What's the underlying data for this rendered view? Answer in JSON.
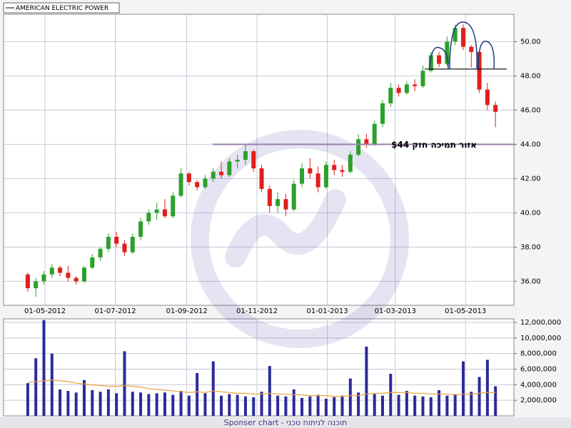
{
  "chart_data": [
    {
      "type": "candlestick",
      "series": [
        {
          "name": "AMERICAN ELECTRIC POWER",
          "up_color": "#2ca02c",
          "down_color": "#e0201b",
          "open": [
            36.4,
            35.6,
            36.0,
            36.4,
            36.8,
            36.5,
            36.2,
            36.0,
            36.8,
            37.4,
            37.9,
            38.6,
            38.2,
            37.7,
            38.6,
            39.5,
            40.0,
            40.2,
            39.8,
            41.0,
            42.3,
            41.8,
            41.5,
            42.0,
            42.4,
            42.2,
            43.0,
            43.1,
            43.6,
            42.6,
            41.4,
            40.4,
            40.8,
            40.2,
            41.7,
            42.6,
            42.3,
            41.5,
            42.8,
            42.5,
            42.4,
            43.4,
            44.3,
            44.0,
            45.2,
            46.4,
            47.3,
            47.0,
            47.5,
            47.4,
            48.3,
            49.2,
            48.7,
            50.0,
            50.8,
            49.7,
            49.4,
            47.2,
            46.3
          ],
          "high": [
            36.5,
            36.2,
            36.6,
            37.0,
            36.9,
            36.9,
            36.3,
            36.9,
            37.6,
            38.0,
            38.8,
            38.9,
            38.4,
            38.8,
            39.7,
            40.2,
            40.6,
            40.8,
            41.2,
            42.6,
            42.4,
            41.9,
            42.2,
            42.6,
            43.0,
            43.2,
            43.4,
            44.0,
            43.7,
            42.8,
            41.6,
            41.2,
            41.1,
            41.9,
            42.9,
            43.2,
            42.7,
            43.0,
            43.1,
            42.8,
            43.6,
            44.6,
            44.6,
            45.4,
            46.6,
            47.6,
            47.5,
            47.7,
            47.8,
            48.6,
            49.4,
            49.4,
            50.3,
            51.0,
            51.0,
            49.8,
            49.5,
            47.6,
            46.5
          ],
          "low": [
            35.4,
            35.1,
            35.8,
            36.2,
            36.3,
            36.0,
            35.8,
            35.9,
            36.7,
            37.2,
            37.7,
            38.0,
            37.5,
            37.6,
            38.4,
            39.3,
            39.6,
            39.7,
            39.7,
            40.9,
            41.6,
            41.3,
            41.4,
            41.8,
            42.0,
            42.1,
            42.6,
            42.8,
            42.4,
            41.2,
            40.0,
            40.0,
            39.8,
            40.1,
            41.5,
            42.0,
            41.2,
            41.4,
            42.2,
            42.1,
            42.3,
            43.3,
            43.8,
            43.9,
            45.0,
            46.2,
            46.8,
            46.9,
            47.1,
            47.3,
            48.2,
            48.5,
            48.6,
            49.8,
            49.5,
            48.5,
            47.0,
            46.0,
            45.0
          ],
          "close": [
            35.6,
            36.0,
            36.4,
            36.8,
            36.5,
            36.2,
            36.0,
            36.8,
            37.4,
            37.9,
            38.6,
            38.2,
            37.7,
            38.6,
            39.5,
            40.0,
            40.2,
            39.8,
            41.0,
            42.3,
            41.8,
            41.5,
            42.0,
            42.4,
            42.2,
            43.0,
            43.1,
            43.6,
            42.6,
            41.4,
            40.4,
            40.8,
            40.2,
            41.7,
            42.6,
            42.3,
            41.5,
            42.8,
            42.5,
            42.4,
            43.4,
            44.3,
            44.0,
            45.2,
            46.4,
            47.3,
            47.0,
            47.5,
            47.4,
            48.3,
            49.2,
            48.7,
            50.0,
            50.8,
            49.7,
            49.4,
            47.2,
            46.3,
            45.9
          ]
        }
      ],
      "x": [
        "2012-04-16",
        "2012-04-23",
        "2012-04-30",
        "2012-05-07",
        "2012-05-14",
        "2012-05-21",
        "2012-05-28",
        "2012-06-04",
        "2012-06-11",
        "2012-06-18",
        "2012-06-25",
        "2012-07-02",
        "2012-07-09",
        "2012-07-16",
        "2012-07-23",
        "2012-07-30",
        "2012-08-06",
        "2012-08-13",
        "2012-08-20",
        "2012-08-27",
        "2012-09-03",
        "2012-09-10",
        "2012-09-17",
        "2012-09-24",
        "2012-10-01",
        "2012-10-08",
        "2012-10-15",
        "2012-10-22",
        "2012-10-29",
        "2012-11-05",
        "2012-11-12",
        "2012-11-19",
        "2012-11-26",
        "2012-12-03",
        "2012-12-10",
        "2012-12-17",
        "2012-12-24",
        "2012-12-31",
        "2013-01-07",
        "2013-01-14",
        "2013-01-21",
        "2013-01-28",
        "2013-02-04",
        "2013-02-11",
        "2013-02-18",
        "2013-02-25",
        "2013-03-04",
        "2013-03-11",
        "2013-03-18",
        "2013-03-25",
        "2013-04-01",
        "2013-04-08",
        "2013-04-15",
        "2013-04-22",
        "2013-04-29",
        "2013-05-06",
        "2013-05-13",
        "2013-05-20",
        "2013-05-27"
      ],
      "xlim": [
        "2012-03-26",
        "2013-06-12"
      ],
      "xticks": [
        {
          "value": "2012-05-01",
          "label": "01-05-2012"
        },
        {
          "value": "2012-07-01",
          "label": "01-07-2012"
        },
        {
          "value": "2012-09-01",
          "label": "01-09-2012"
        },
        {
          "value": "2012-11-01",
          "label": "01-11-2012"
        },
        {
          "value": "2013-01-01",
          "label": "01-01-2013"
        },
        {
          "value": "2013-03-01",
          "label": "01-03-2013"
        },
        {
          "value": "2013-05-01",
          "label": "01-05-2013"
        }
      ],
      "ylim": [
        34.6,
        51.6
      ],
      "yticks": [
        {
          "value": 36,
          "label": "36.00"
        },
        {
          "value": 38,
          "label": "38.00"
        },
        {
          "value": 40,
          "label": "40.00"
        },
        {
          "value": 42,
          "label": "42.00"
        },
        {
          "value": 44,
          "label": "44.00"
        },
        {
          "value": 46,
          "label": "46.00"
        },
        {
          "value": 48,
          "label": "48.00"
        },
        {
          "value": 50,
          "label": "50.00"
        }
      ],
      "grid": true,
      "support": {
        "value": 44,
        "text": "אזור תמיכה חזק $44",
        "color": "#9b7fa8"
      },
      "neckline": {
        "value": 48.4,
        "color": "#000000"
      }
    },
    {
      "type": "volume",
      "values": [
        4200000,
        7400000,
        12300000,
        8000000,
        3400000,
        3200000,
        3000000,
        4600000,
        3300000,
        3100000,
        3400000,
        2900000,
        8300000,
        3100000,
        3000000,
        2800000,
        2900000,
        3000000,
        2700000,
        3200000,
        2600000,
        5500000,
        2900000,
        7000000,
        2600000,
        2800000,
        2700000,
        2500000,
        2400000,
        3100000,
        6400000,
        2600000,
        2500000,
        3400000,
        2300000,
        2500000,
        2700000,
        2200000,
        2400000,
        2600000,
        4800000,
        3000000,
        8900000,
        2800000,
        2600000,
        5400000,
        2700000,
        3200000,
        2600000,
        2500000,
        2400000,
        3300000,
        2600000,
        2800000,
        7000000,
        3100000,
        5000000,
        7200000,
        3800000
      ],
      "color": "#2b2b9a",
      "ma_values": [
        4300000,
        4400000,
        4500000,
        4600000,
        4500000,
        4400000,
        4200000,
        4100000,
        4000000,
        3900000,
        3800000,
        3800000,
        3900000,
        3800000,
        3700000,
        3500000,
        3400000,
        3300000,
        3200000,
        3100000,
        3000000,
        3100000,
        3000000,
        3200000,
        3100000,
        3000000,
        2900000,
        2900000,
        2800000,
        2800000,
        2900000,
        2800000,
        2800000,
        2700000,
        2700000,
        2600000,
        2600000,
        2600000,
        2500000,
        2500000,
        2600000,
        2600000,
        2800000,
        2900000,
        2900000,
        3000000,
        3000000,
        3000000,
        2900000,
        2900000,
        2800000,
        2800000,
        2800000,
        2700000,
        2800000,
        2800000,
        2900000,
        3000000,
        3000000
      ],
      "ma_color": "#e8a33c",
      "ylim": [
        0,
        12460000
      ],
      "yticks": [
        {
          "value": 2000000,
          "label": "2,000,000"
        },
        {
          "value": 4000000,
          "label": "4,000,000"
        },
        {
          "value": 6000000,
          "label": "6,000,000"
        },
        {
          "value": 8000000,
          "label": "8,000,000"
        },
        {
          "value": 10000000,
          "label": "10,000,000"
        },
        {
          "value": 12000000,
          "label": "12,000,000"
        }
      ],
      "grid": true
    }
  ],
  "footer": {
    "text": "Sponser chart - תוכנה לניתוח טכני"
  }
}
